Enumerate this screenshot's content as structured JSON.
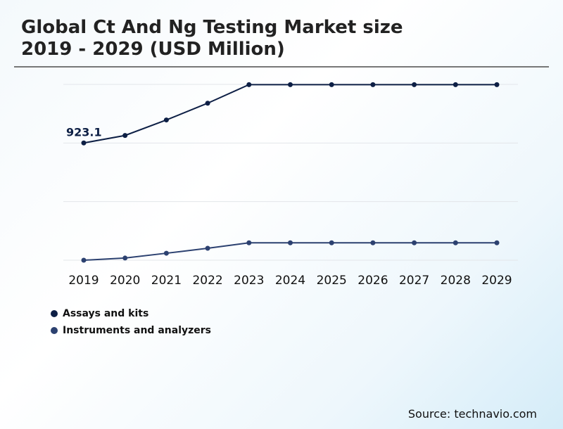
{
  "title_line1": "Global Ct And Ng Testing Market size",
  "title_line2": "2019 - 2029 (USD Million)",
  "source": "Source: technavio.com",
  "chart_data": {
    "type": "line",
    "title": "Global Ct And Ng Testing Market size 2019 - 2029 (USD Million)",
    "categories": [
      "2019",
      "2020",
      "2021",
      "2022",
      "2023",
      "2024",
      "2025",
      "2026",
      "2027",
      "2028",
      "2029"
    ],
    "series": [
      {
        "name": "Assays and kits",
        "color": "#0d1f45",
        "values": [
          923.1,
          982,
          1104,
          1236,
          1382,
          1382,
          1382,
          1382,
          1382,
          1382,
          1382
        ]
      },
      {
        "name": "Instruments and analyzers",
        "color": "#2c4170",
        "values": [
          0,
          17,
          55,
          94,
          137,
          137,
          137,
          137,
          137,
          137,
          137
        ]
      }
    ],
    "data_labels": [
      {
        "series": 0,
        "index": 0,
        "text": "923.1"
      }
    ],
    "ylim": [
      0,
      1384
    ],
    "grid": true,
    "legend": "bottom-left"
  }
}
